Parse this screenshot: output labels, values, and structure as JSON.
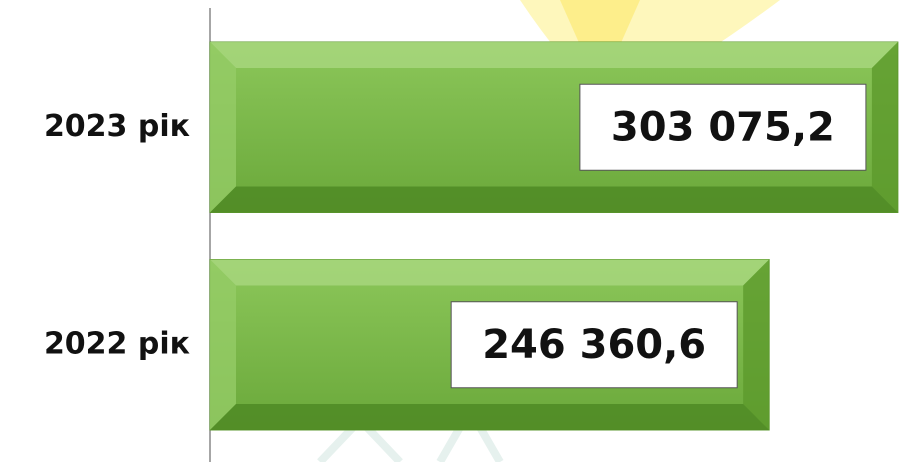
{
  "chart_data": {
    "type": "bar",
    "orientation": "horizontal",
    "categories": [
      "2023 рік",
      "2022 рік"
    ],
    "values": [
      303075.2,
      246360.6
    ],
    "value_labels": [
      "303 075,2",
      "246 360,6"
    ],
    "color": "#7ab648",
    "xlim": [
      0,
      304000
    ]
  }
}
